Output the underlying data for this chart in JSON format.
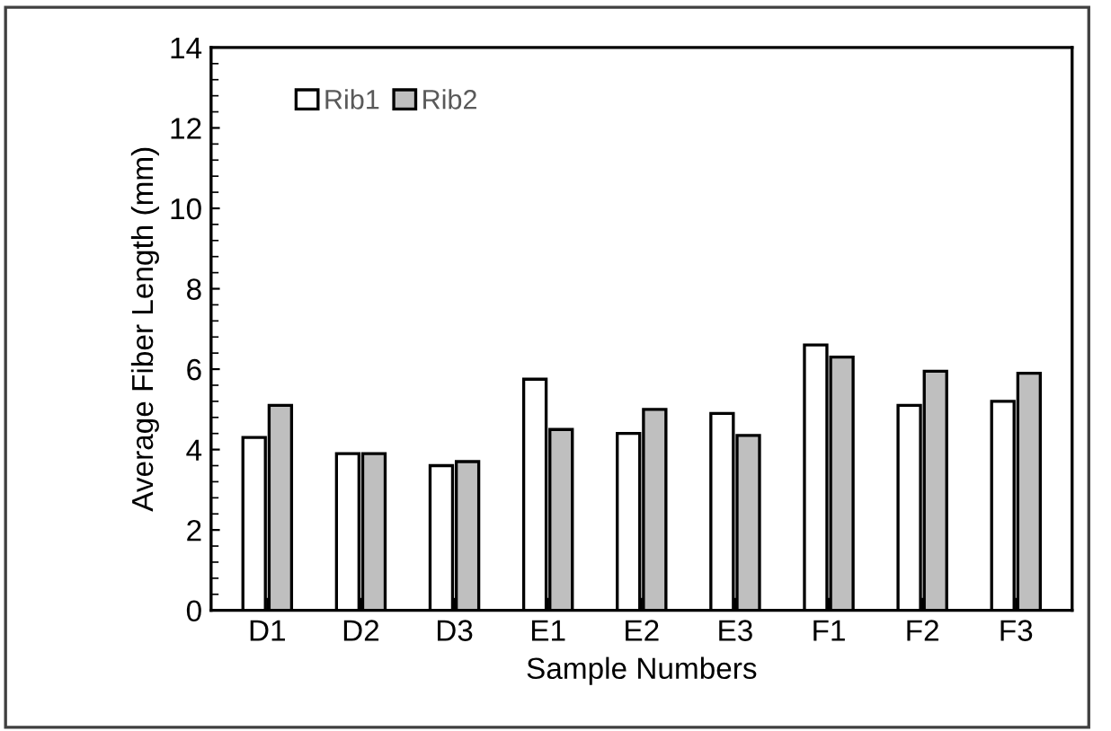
{
  "chart_data": {
    "type": "bar",
    "xlabel": "Sample Numbers",
    "ylabel": "Average Fiber Length (mm)",
    "categories": [
      "D1",
      "D2",
      "D3",
      "E1",
      "E2",
      "E3",
      "F1",
      "F2",
      "F3"
    ],
    "series": [
      {
        "name": "Rib1",
        "color": "#ffffff",
        "values": [
          4.3,
          3.9,
          3.6,
          5.75,
          4.4,
          4.9,
          6.6,
          5.1,
          5.2
        ]
      },
      {
        "name": "Rib2",
        "color": "#bfbfbf",
        "values": [
          5.1,
          3.9,
          3.7,
          4.5,
          5.0,
          4.35,
          6.3,
          5.95,
          5.9
        ]
      }
    ],
    "ylim": [
      0,
      14
    ],
    "yticks": [
      0,
      2,
      4,
      6,
      8,
      10,
      12,
      14
    ],
    "grid": false,
    "legend": "top left"
  }
}
